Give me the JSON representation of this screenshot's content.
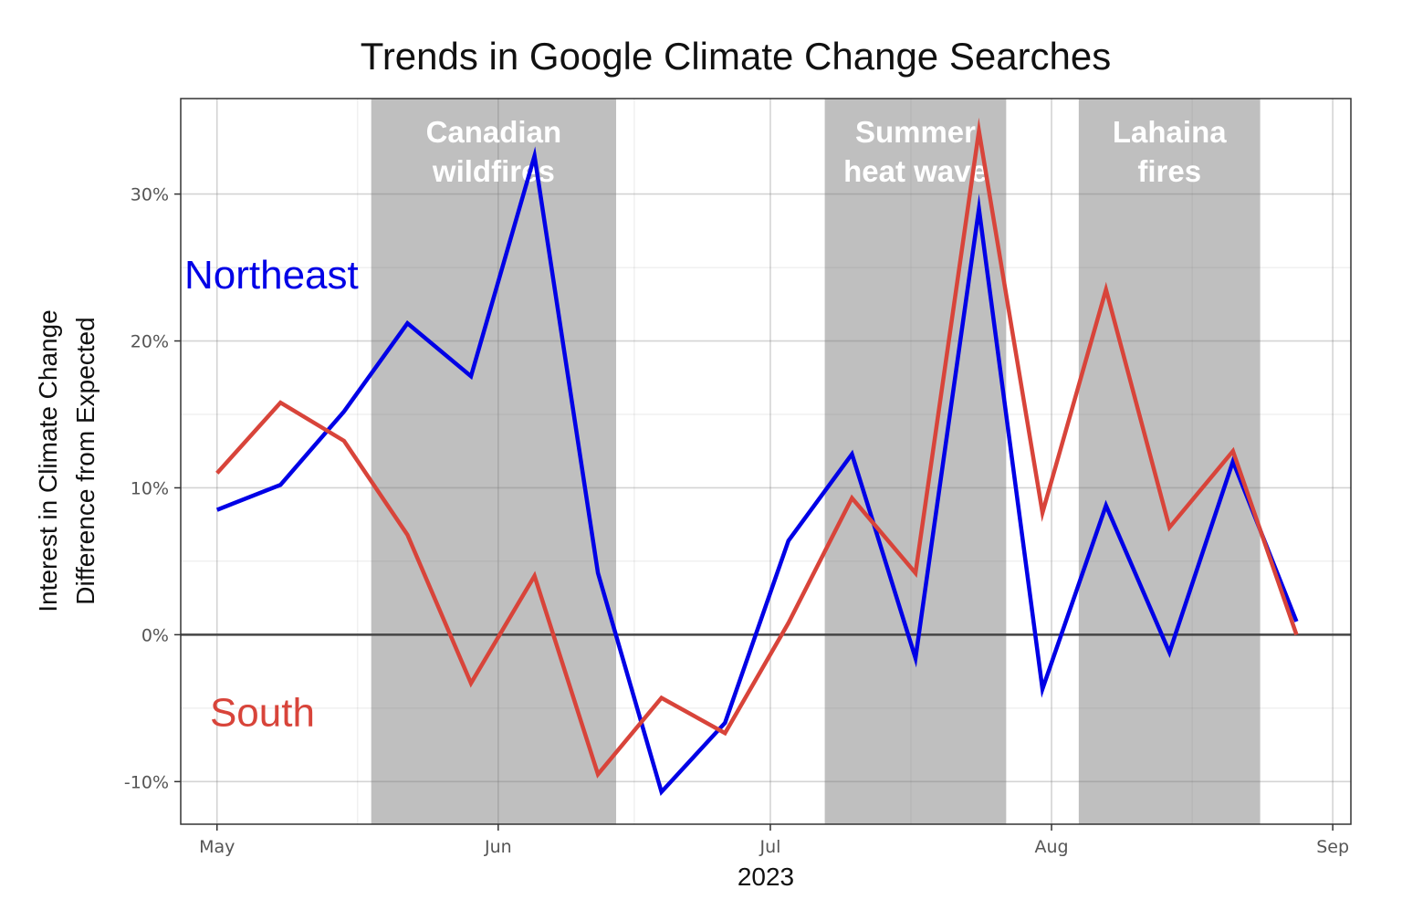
{
  "chart_data": {
    "type": "line",
    "title": "Trends in Google Climate Change Searches",
    "xlabel": "2023",
    "ylabel_lines": [
      "Interest in Climate Change",
      "Difference from Expected"
    ],
    "x_ticks": [
      {
        "date": "2023-05-01",
        "label": "May"
      },
      {
        "date": "2023-06-01",
        "label": "Jun"
      },
      {
        "date": "2023-07-01",
        "label": "Jul"
      },
      {
        "date": "2023-08-01",
        "label": "Aug"
      },
      {
        "date": "2023-09-01",
        "label": "Sep"
      }
    ],
    "y_ticks": [
      {
        "value": -10,
        "label": "-10%"
      },
      {
        "value": 0,
        "label": "0%"
      },
      {
        "value": 10,
        "label": "10%"
      },
      {
        "value": 20,
        "label": "20%"
      },
      {
        "value": 30,
        "label": "30%"
      }
    ],
    "xlim": [
      "2023-04-27",
      "2023-09-03"
    ],
    "ylim": [
      -12.9,
      36.5
    ],
    "grid": true,
    "reference_line": 0,
    "shaded_periods": [
      {
        "start": "2023-05-18",
        "end": "2023-06-14",
        "label_lines": [
          "Canadian",
          "wildfires"
        ]
      },
      {
        "start": "2023-07-07",
        "end": "2023-07-27",
        "label_lines": [
          "Summer",
          "heat wave"
        ]
      },
      {
        "start": "2023-08-04",
        "end": "2023-08-24",
        "label_lines": [
          "Lahaina",
          "fires"
        ]
      }
    ],
    "x": [
      "2023-05-01",
      "2023-05-08",
      "2023-05-15",
      "2023-05-22",
      "2023-05-29",
      "2023-06-05",
      "2023-06-12",
      "2023-06-19",
      "2023-06-26",
      "2023-07-03",
      "2023-07-10",
      "2023-07-17",
      "2023-07-24",
      "2023-07-31",
      "2023-08-07",
      "2023-08-14",
      "2023-08-21",
      "2023-08-28"
    ],
    "series": [
      {
        "name": "Northeast",
        "color": "#0000e6",
        "values": [
          8.5,
          10.2,
          15.2,
          21.2,
          17.6,
          32.6,
          4.2,
          -10.7,
          -6.0,
          6.4,
          12.3,
          -1.6,
          29.0,
          -3.7,
          8.8,
          -1.2,
          11.8,
          0.9
        ]
      },
      {
        "name": "South",
        "color": "#d8443a",
        "values": [
          11.0,
          15.8,
          13.2,
          6.8,
          -3.3,
          4.0,
          -9.5,
          -4.3,
          -6.7,
          0.8,
          9.3,
          4.2,
          34.3,
          8.3,
          23.5,
          7.3,
          12.5,
          0.0
        ]
      }
    ]
  }
}
